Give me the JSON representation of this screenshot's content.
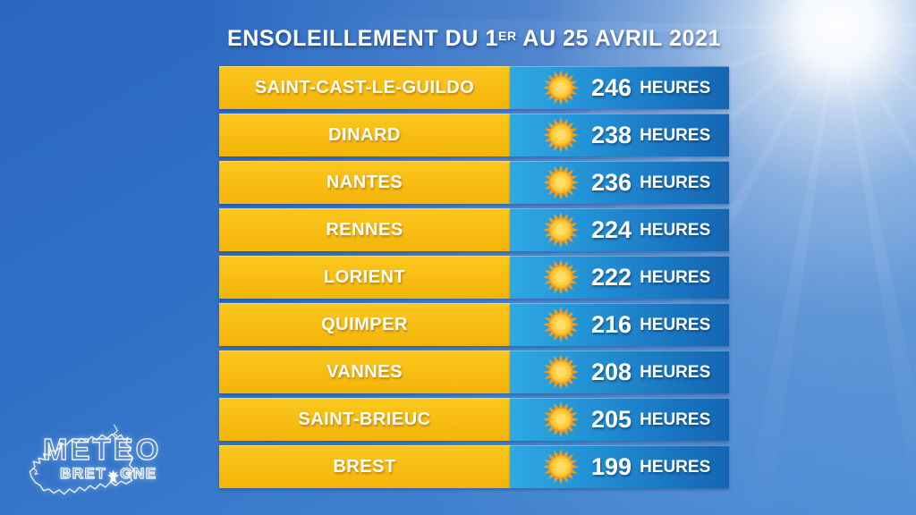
{
  "title": {
    "part1": "ENSOLEILLEMENT DU 1",
    "superscript": "ER",
    "part2": " AU 25 AVRIL 2021"
  },
  "unit": "HEURES",
  "rows": [
    {
      "city": "SAINT-CAST-LE-GUILDO",
      "hours": "246"
    },
    {
      "city": "DINARD",
      "hours": "238"
    },
    {
      "city": "NANTES",
      "hours": "236"
    },
    {
      "city": "RENNES",
      "hours": "224"
    },
    {
      "city": "LORIENT",
      "hours": "222"
    },
    {
      "city": "QUIMPER",
      "hours": "216"
    },
    {
      "city": "VANNES",
      "hours": "208"
    },
    {
      "city": "SAINT-BRIEUC",
      "hours": "205"
    },
    {
      "city": "BREST",
      "hours": "199"
    }
  ],
  "logo": {
    "line1": "METEO",
    "line2_part1": "BRET",
    "line2_part2": "GNE"
  },
  "colors": {
    "city_panel_yellow": "#F8BD12",
    "value_panel_blue_light": "#2FA9E2",
    "value_panel_blue_dark": "#1566B2",
    "sky_top": "#2B68C1",
    "sky_bottom": "#4687D2",
    "sun_ray_orange": "#F29C1F",
    "sun_disc_yellow": "#FFCB38",
    "text_white": "#FFFFFF"
  },
  "chart_data": {
    "type": "table",
    "title": "ENSOLEILLEMENT DU 1ER AU 25 AVRIL 2021",
    "categories": [
      "SAINT-CAST-LE-GUILDO",
      "DINARD",
      "NANTES",
      "RENNES",
      "LORIENT",
      "QUIMPER",
      "VANNES",
      "SAINT-BRIEUC",
      "BREST"
    ],
    "values": [
      246,
      238,
      236,
      224,
      222,
      216,
      208,
      205,
      199
    ],
    "unit": "heures",
    "legend_position": "none",
    "grid": false
  }
}
